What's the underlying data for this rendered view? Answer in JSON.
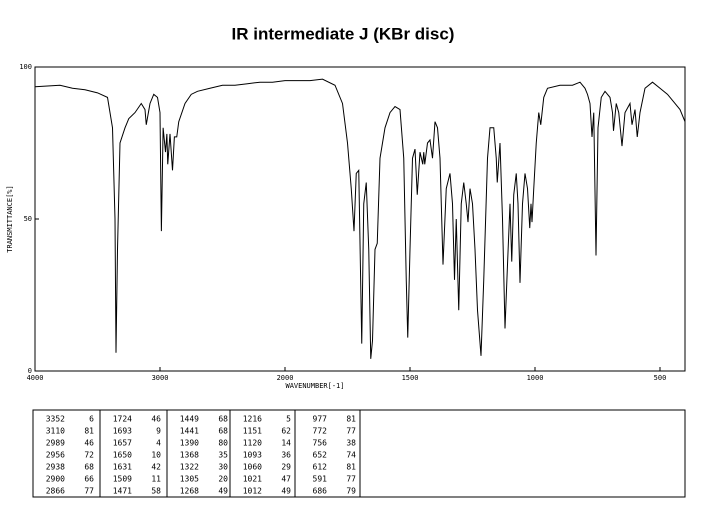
{
  "chart_data": {
    "type": "line",
    "title": "IR intermediate J (KBr disc)",
    "x_label": "WAVENUMBER[-1]",
    "y_label": "TRANSMITTANCE[%]",
    "xlim": [
      4000,
      400
    ],
    "xticks": [
      4000,
      3000,
      2000,
      1500,
      1000,
      500
    ],
    "ylim": [
      0,
      100
    ],
    "yticks": [
      0,
      50,
      100
    ],
    "color": "#000000",
    "x": [
      4000,
      3800,
      3700,
      3600,
      3500,
      3420,
      3380,
      3360,
      3352,
      3340,
      3320,
      3280,
      3250,
      3200,
      3150,
      3120,
      3110,
      3080,
      3050,
      3020,
      3000,
      2989,
      2975,
      2956,
      2945,
      2938,
      2920,
      2900,
      2885,
      2866,
      2850,
      2800,
      2750,
      2700,
      2600,
      2500,
      2400,
      2300,
      2200,
      2100,
      2000,
      1900,
      1850,
      1800,
      1770,
      1750,
      1735,
      1724,
      1715,
      1705,
      1693,
      1685,
      1675,
      1665,
      1657,
      1650,
      1640,
      1631,
      1620,
      1600,
      1580,
      1560,
      1540,
      1525,
      1515,
      1509,
      1500,
      1490,
      1480,
      1471,
      1460,
      1449,
      1445,
      1441,
      1430,
      1420,
      1410,
      1400,
      1390,
      1380,
      1368,
      1355,
      1340,
      1330,
      1322,
      1315,
      1305,
      1295,
      1285,
      1275,
      1268,
      1260,
      1250,
      1240,
      1230,
      1216,
      1205,
      1190,
      1180,
      1165,
      1155,
      1151,
      1140,
      1130,
      1120,
      1110,
      1100,
      1093,
      1085,
      1075,
      1068,
      1060,
      1050,
      1040,
      1030,
      1021,
      1016,
      1012,
      1005,
      995,
      985,
      977,
      965,
      950,
      900,
      850,
      820,
      800,
      790,
      780,
      772,
      765,
      756,
      748,
      735,
      720,
      700,
      690,
      686,
      675,
      665,
      652,
      640,
      620,
      612,
      600,
      591,
      580,
      560,
      530,
      500,
      470,
      440,
      420,
      400
    ],
    "y": [
      93.5,
      94,
      93,
      92.5,
      91.5,
      90,
      80,
      50,
      6,
      40,
      75,
      80,
      83,
      85,
      88,
      86,
      81,
      88,
      91,
      90,
      85,
      46,
      80,
      72,
      78,
      68,
      78,
      66,
      77,
      77,
      82,
      88,
      91,
      92,
      93,
      94,
      94,
      94.5,
      95,
      95,
      95.5,
      95.5,
      96,
      94,
      88,
      75,
      60,
      46,
      65,
      66,
      9,
      55,
      62,
      40,
      4,
      10,
      40,
      42,
      70,
      80,
      85,
      87,
      86,
      70,
      30,
      11,
      40,
      70,
      73,
      58,
      72,
      68,
      72,
      68,
      75,
      76,
      70,
      82,
      80,
      70,
      35,
      60,
      65,
      55,
      30,
      50,
      20,
      55,
      62,
      55,
      49,
      60,
      55,
      40,
      20,
      5,
      30,
      70,
      80,
      80,
      70,
      62,
      75,
      50,
      14,
      35,
      55,
      36,
      58,
      65,
      55,
      29,
      55,
      65,
      60,
      47,
      55,
      49,
      60,
      75,
      85,
      81,
      90,
      93,
      94,
      94,
      95,
      93,
      91,
      88,
      77,
      85,
      38,
      80,
      90,
      92,
      90,
      85,
      79,
      88,
      85,
      74,
      85,
      88,
      81,
      86,
      77,
      85,
      93,
      95,
      93,
      91,
      88,
      86,
      82
    ]
  },
  "peak_table": {
    "columns": [
      [
        [
          3352,
          6
        ],
        [
          3110,
          81
        ],
        [
          2989,
          46
        ],
        [
          2956,
          72
        ],
        [
          2938,
          68
        ],
        [
          2900,
          66
        ],
        [
          2866,
          77
        ]
      ],
      [
        [
          1724,
          46
        ],
        [
          1693,
          9
        ],
        [
          1657,
          4
        ],
        [
          1650,
          10
        ],
        [
          1631,
          42
        ],
        [
          1509,
          11
        ],
        [
          1471,
          58
        ]
      ],
      [
        [
          1449,
          68
        ],
        [
          1441,
          68
        ],
        [
          1390,
          80
        ],
        [
          1368,
          35
        ],
        [
          1322,
          30
        ],
        [
          1305,
          20
        ],
        [
          1268,
          49
        ]
      ],
      [
        [
          1216,
          5
        ],
        [
          1151,
          62
        ],
        [
          1120,
          14
        ],
        [
          1093,
          36
        ],
        [
          1060,
          29
        ],
        [
          1021,
          47
        ],
        [
          1012,
          49
        ]
      ],
      [
        [
          977,
          81
        ],
        [
          772,
          77
        ],
        [
          756,
          38
        ],
        [
          652,
          74
        ],
        [
          612,
          81
        ],
        [
          591,
          77
        ],
        [
          686,
          79
        ]
      ]
    ]
  }
}
